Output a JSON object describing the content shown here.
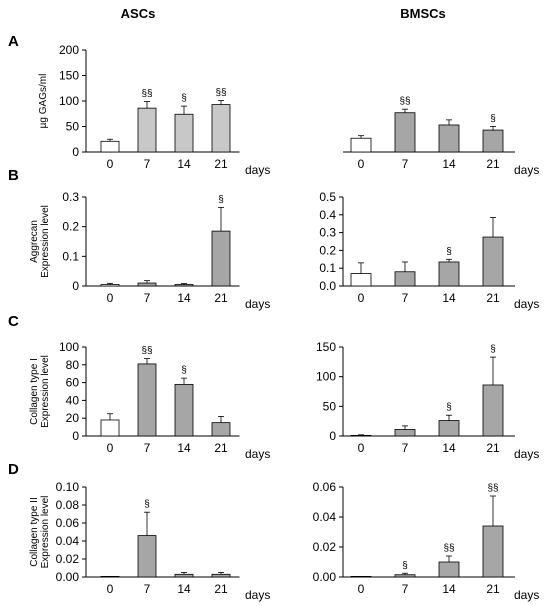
{
  "header": {
    "left": "ASCs",
    "right": "BMSCs"
  },
  "chart_data": [
    {
      "panel": "A",
      "column": "ASCs",
      "type": "bar",
      "categories": [
        "0",
        "7",
        "14",
        "21"
      ],
      "values": [
        21,
        86,
        74,
        93
      ],
      "errors": [
        4,
        13,
        16,
        8
      ],
      "annotations": [
        "",
        "§§",
        "§",
        "§§"
      ],
      "bar_colors": [
        "#ffffff",
        "#c8c8c8",
        "#c8c8c8",
        "#c8c8c8"
      ],
      "ylabel": "µg GAGs/ml",
      "xlabel": "days",
      "ylim": [
        0,
        200
      ],
      "yticks": [
        "0",
        "50",
        "100",
        "150",
        "200"
      ],
      "grid": false
    },
    {
      "panel": "A",
      "column": "BMSCs",
      "type": "bar",
      "categories": [
        "0",
        "7",
        "14",
        "21"
      ],
      "values": [
        27,
        77,
        53,
        43
      ],
      "errors": [
        5,
        7,
        10,
        7
      ],
      "annotations": [
        "",
        "§§",
        "",
        "§"
      ],
      "bar_colors": [
        "#ffffff",
        "#a6a6a6",
        "#a6a6a6",
        "#a6a6a6"
      ],
      "ylabel": "",
      "xlabel": "days",
      "ylim": [
        0,
        200
      ],
      "yticks": [],
      "grid": false
    },
    {
      "panel": "B",
      "column": "ASCs",
      "type": "bar",
      "categories": [
        "0",
        "7",
        "14",
        "21"
      ],
      "values": [
        0.005,
        0.01,
        0.005,
        0.185
      ],
      "errors": [
        0.004,
        0.008,
        0.003,
        0.08
      ],
      "annotations": [
        "",
        "",
        "",
        "§"
      ],
      "bar_colors": [
        "#ffffff",
        "#a6a6a6",
        "#a6a6a6",
        "#a6a6a6"
      ],
      "ylabel": "Aggrecan Expression level",
      "xlabel": "days",
      "ylim": [
        0,
        0.3
      ],
      "yticks": [
        "0",
        "0.1",
        "0.2",
        "0.3"
      ],
      "grid": false
    },
    {
      "panel": "B",
      "column": "BMSCs",
      "type": "bar",
      "categories": [
        "0",
        "7",
        "14",
        "21"
      ],
      "values": [
        0.07,
        0.08,
        0.135,
        0.275
      ],
      "errors": [
        0.06,
        0.055,
        0.015,
        0.11
      ],
      "annotations": [
        "",
        "",
        "§",
        ""
      ],
      "bar_colors": [
        "#ffffff",
        "#a6a6a6",
        "#a6a6a6",
        "#a6a6a6"
      ],
      "ylabel": "",
      "xlabel": "days",
      "ylim": [
        0,
        0.5
      ],
      "yticks": [
        "0.0",
        "0.1",
        "0.2",
        "0.3",
        "0.4",
        "0.5"
      ],
      "grid": false
    },
    {
      "panel": "C",
      "column": "ASCs",
      "type": "bar",
      "categories": [
        "0",
        "7",
        "14",
        "21"
      ],
      "values": [
        18,
        81,
        58,
        15
      ],
      "errors": [
        7,
        6,
        7,
        7
      ],
      "annotations": [
        "",
        "§§",
        "§",
        ""
      ],
      "bar_colors": [
        "#ffffff",
        "#a6a6a6",
        "#a6a6a6",
        "#a6a6a6"
      ],
      "ylabel": "Collagen type I Expression level",
      "xlabel": "days",
      "ylim": [
        0,
        100
      ],
      "yticks": [
        "0",
        "20",
        "40",
        "60",
        "80",
        "100"
      ],
      "grid": false
    },
    {
      "panel": "C",
      "column": "BMSCs",
      "type": "bar",
      "categories": [
        "0",
        "7",
        "14",
        "21"
      ],
      "values": [
        1,
        11,
        26,
        86
      ],
      "errors": [
        1,
        6,
        9,
        47
      ],
      "annotations": [
        "",
        "",
        "§",
        "§"
      ],
      "bar_colors": [
        "#ffffff",
        "#a6a6a6",
        "#a6a6a6",
        "#a6a6a6"
      ],
      "ylabel": "",
      "xlabel": "days",
      "ylim": [
        0,
        150
      ],
      "yticks": [
        "0",
        "50",
        "100",
        "150"
      ],
      "grid": false
    },
    {
      "panel": "D",
      "column": "ASCs",
      "type": "bar",
      "categories": [
        "0",
        "7",
        "14",
        "21"
      ],
      "values": [
        0.0003,
        0.046,
        0.003,
        0.003
      ],
      "errors": [
        0.0002,
        0.026,
        0.002,
        0.002
      ],
      "annotations": [
        "",
        "§",
        "",
        ""
      ],
      "bar_colors": [
        "#ffffff",
        "#a6a6a6",
        "#a6a6a6",
        "#a6a6a6"
      ],
      "ylabel": "Collagen type II Expression level",
      "xlabel": "days",
      "ylim": [
        0,
        0.1
      ],
      "yticks": [
        "0.00",
        "0.02",
        "0.04",
        "0.06",
        "0.08",
        "0.10"
      ],
      "grid": false
    },
    {
      "panel": "D",
      "column": "BMSCs",
      "type": "bar",
      "categories": [
        "0",
        "7",
        "14",
        "21"
      ],
      "values": [
        0.0002,
        0.0015,
        0.01,
        0.034
      ],
      "errors": [
        0.0001,
        0.001,
        0.004,
        0.02
      ],
      "annotations": [
        "",
        "§",
        "§§",
        "§§"
      ],
      "bar_colors": [
        "#ffffff",
        "#a6a6a6",
        "#a6a6a6",
        "#a6a6a6"
      ],
      "ylabel": "",
      "xlabel": "days",
      "ylim": [
        0,
        0.06
      ],
      "yticks": [
        "0.00",
        "0.02",
        "0.04",
        "0.06"
      ],
      "grid": false
    }
  ]
}
